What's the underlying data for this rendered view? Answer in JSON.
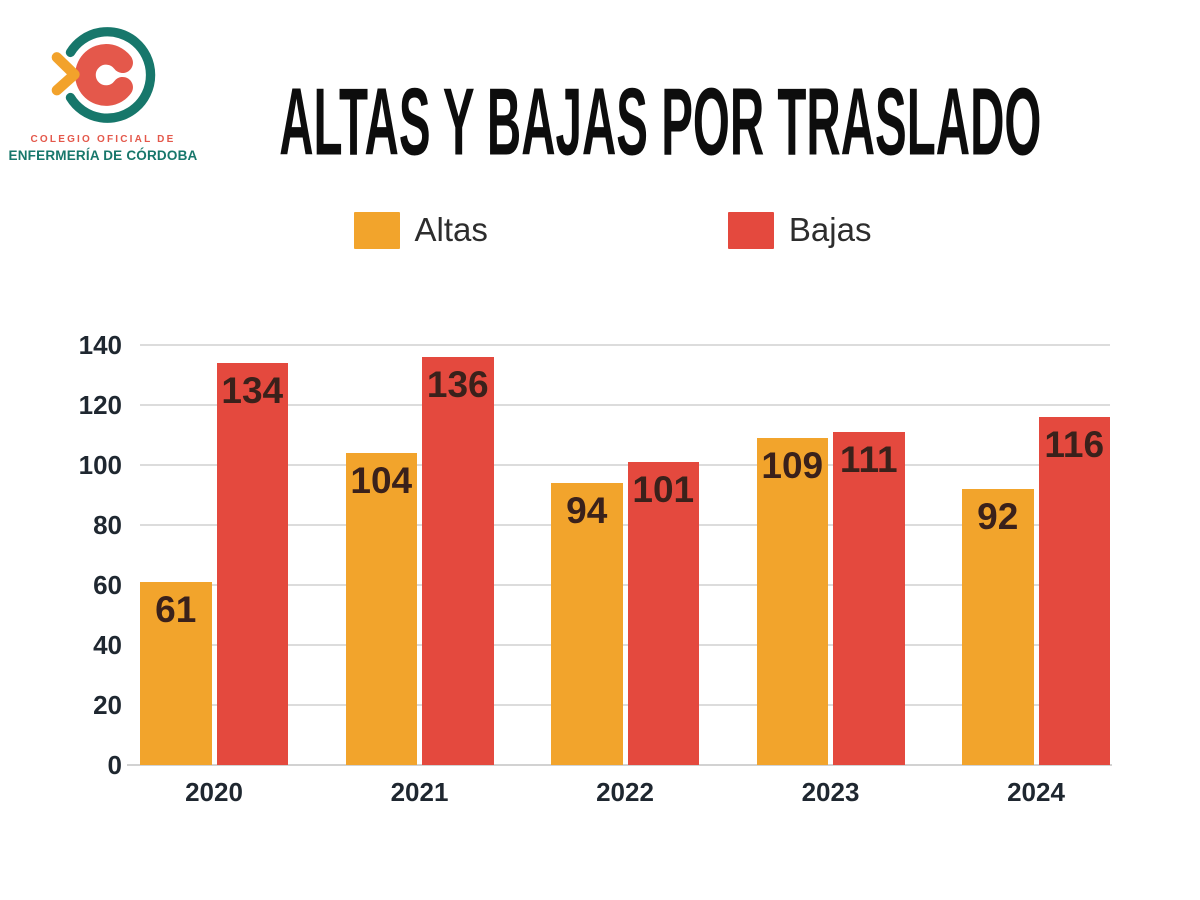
{
  "logo": {
    "line1": "COLEGIO OFICIAL DE",
    "line2": "ENFERMERÍA DE CÓRDOBA",
    "teal": "#17776B",
    "coral": "#E4584B",
    "orange": "#F2A22B"
  },
  "chart_data": {
    "type": "bar",
    "title": "ALTAS Y BAJAS POR TRASLADO",
    "categories": [
      "2020",
      "2021",
      "2022",
      "2023",
      "2024"
    ],
    "series": [
      {
        "name": "Altas",
        "color": "#F2A42C",
        "values": [
          61,
          104,
          94,
          109,
          92
        ]
      },
      {
        "name": "Bajas",
        "color": "#E4493E",
        "values": [
          134,
          136,
          101,
          111,
          116
        ]
      }
    ],
    "ylim": [
      0,
      140
    ],
    "yticks": [
      0,
      20,
      40,
      60,
      80,
      100,
      120,
      140
    ],
    "grid": true,
    "legend_position": "top",
    "value_labels": "inside-top",
    "xlabel": "",
    "ylabel": ""
  },
  "colors": {
    "background": "#FFFFFF",
    "gridline": "#DCDCDC",
    "axis_text": "#1F2730",
    "bar_value_text": "#3A211B",
    "legend_text": "#2D2D2D",
    "title_text": "#0D0D0D"
  }
}
